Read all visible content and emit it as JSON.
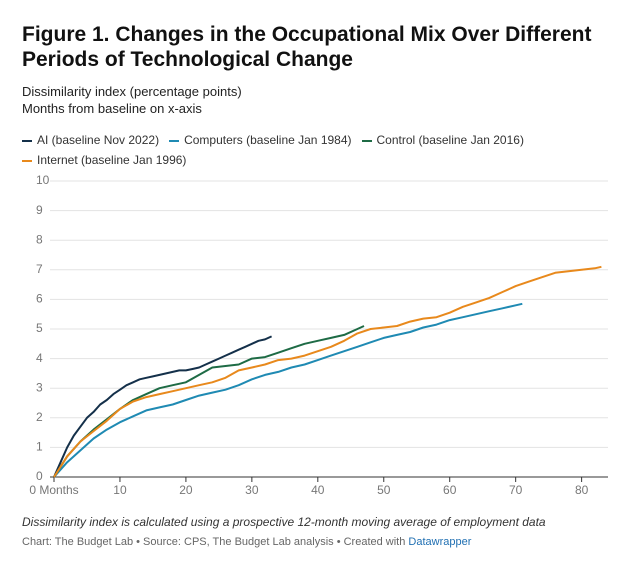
{
  "chart_data": {
    "type": "line",
    "title": "Figure 1. Changes in the Occupational Mix Over Different Periods of Technological Change",
    "subtitle": [
      "Dissimilarity index (percentage points)",
      "Months from baseline on x-axis"
    ],
    "note": "Dissimilarity index is calculated using a prospective 12-month moving average of employment data",
    "source": "Chart: The Budget Lab • Source: CPS, The Budget Lab analysis • Created with",
    "source_link": "Datawrapper",
    "xlim": [
      0,
      84
    ],
    "ylim": [
      0,
      10
    ],
    "xticks": [
      {
        "value": 0,
        "label": "0 Months"
      },
      10,
      20,
      30,
      40,
      50,
      60,
      70,
      80
    ],
    "yticks": [
      0,
      1,
      2,
      3,
      4,
      5,
      6,
      7,
      8,
      9,
      10
    ],
    "grid": true,
    "series": [
      {
        "name": "AI (baseline Nov 2022)",
        "color": "#14304a",
        "x": [
          0,
          1,
          2,
          3,
          4,
          5,
          6,
          7,
          8,
          9,
          10,
          11,
          12,
          13,
          14,
          15,
          16,
          17,
          18,
          19,
          20,
          21,
          22,
          23,
          24,
          25,
          26,
          27,
          28,
          29,
          30,
          31,
          32,
          33
        ],
        "values": [
          0,
          0.5,
          1.0,
          1.4,
          1.7,
          2.0,
          2.2,
          2.45,
          2.6,
          2.8,
          2.95,
          3.1,
          3.2,
          3.3,
          3.35,
          3.4,
          3.45,
          3.5,
          3.55,
          3.6,
          3.6,
          3.65,
          3.7,
          3.8,
          3.9,
          4.0,
          4.1,
          4.2,
          4.3,
          4.4,
          4.5,
          4.6,
          4.65,
          4.75
        ]
      },
      {
        "name": "Computers (baseline Jan 1984)",
        "color": "#1f8ab3",
        "x": [
          0,
          2,
          4,
          6,
          8,
          10,
          12,
          14,
          16,
          18,
          20,
          22,
          24,
          26,
          28,
          30,
          32,
          34,
          36,
          38,
          40,
          42,
          44,
          46,
          48,
          50,
          52,
          54,
          56,
          58,
          60,
          62,
          64,
          66,
          68,
          70,
          71
        ],
        "values": [
          0,
          0.5,
          0.9,
          1.3,
          1.6,
          1.85,
          2.05,
          2.25,
          2.35,
          2.45,
          2.6,
          2.75,
          2.85,
          2.95,
          3.1,
          3.3,
          3.45,
          3.55,
          3.7,
          3.8,
          3.95,
          4.1,
          4.25,
          4.4,
          4.55,
          4.7,
          4.8,
          4.9,
          5.05,
          5.15,
          5.3,
          5.4,
          5.5,
          5.6,
          5.7,
          5.8,
          5.85
        ]
      },
      {
        "name": "Control (baseline Jan 2016)",
        "color": "#1e6b45",
        "x": [
          0,
          2,
          4,
          6,
          8,
          10,
          12,
          14,
          16,
          18,
          20,
          22,
          24,
          26,
          28,
          30,
          32,
          34,
          36,
          38,
          40,
          42,
          44,
          46,
          47
        ],
        "values": [
          0,
          0.7,
          1.2,
          1.6,
          1.95,
          2.3,
          2.6,
          2.8,
          3.0,
          3.1,
          3.2,
          3.45,
          3.7,
          3.75,
          3.8,
          4.0,
          4.05,
          4.2,
          4.35,
          4.5,
          4.6,
          4.7,
          4.8,
          5.0,
          5.1
        ]
      },
      {
        "name": "Internet (baseline Jan 1996)",
        "color": "#e8891c",
        "x": [
          0,
          2,
          4,
          6,
          8,
          10,
          12,
          14,
          16,
          18,
          20,
          22,
          24,
          26,
          28,
          30,
          32,
          34,
          36,
          38,
          40,
          42,
          44,
          46,
          48,
          50,
          52,
          54,
          56,
          58,
          60,
          62,
          64,
          66,
          68,
          70,
          72,
          74,
          76,
          78,
          80,
          82,
          83
        ],
        "values": [
          0,
          0.7,
          1.2,
          1.55,
          1.9,
          2.3,
          2.55,
          2.7,
          2.8,
          2.9,
          3.0,
          3.1,
          3.2,
          3.35,
          3.6,
          3.7,
          3.8,
          3.95,
          4.0,
          4.1,
          4.25,
          4.4,
          4.6,
          4.85,
          5.0,
          5.05,
          5.1,
          5.25,
          5.35,
          5.4,
          5.55,
          5.75,
          5.9,
          6.05,
          6.25,
          6.45,
          6.6,
          6.75,
          6.9,
          6.95,
          7.0,
          7.05,
          7.1
        ]
      }
    ]
  }
}
